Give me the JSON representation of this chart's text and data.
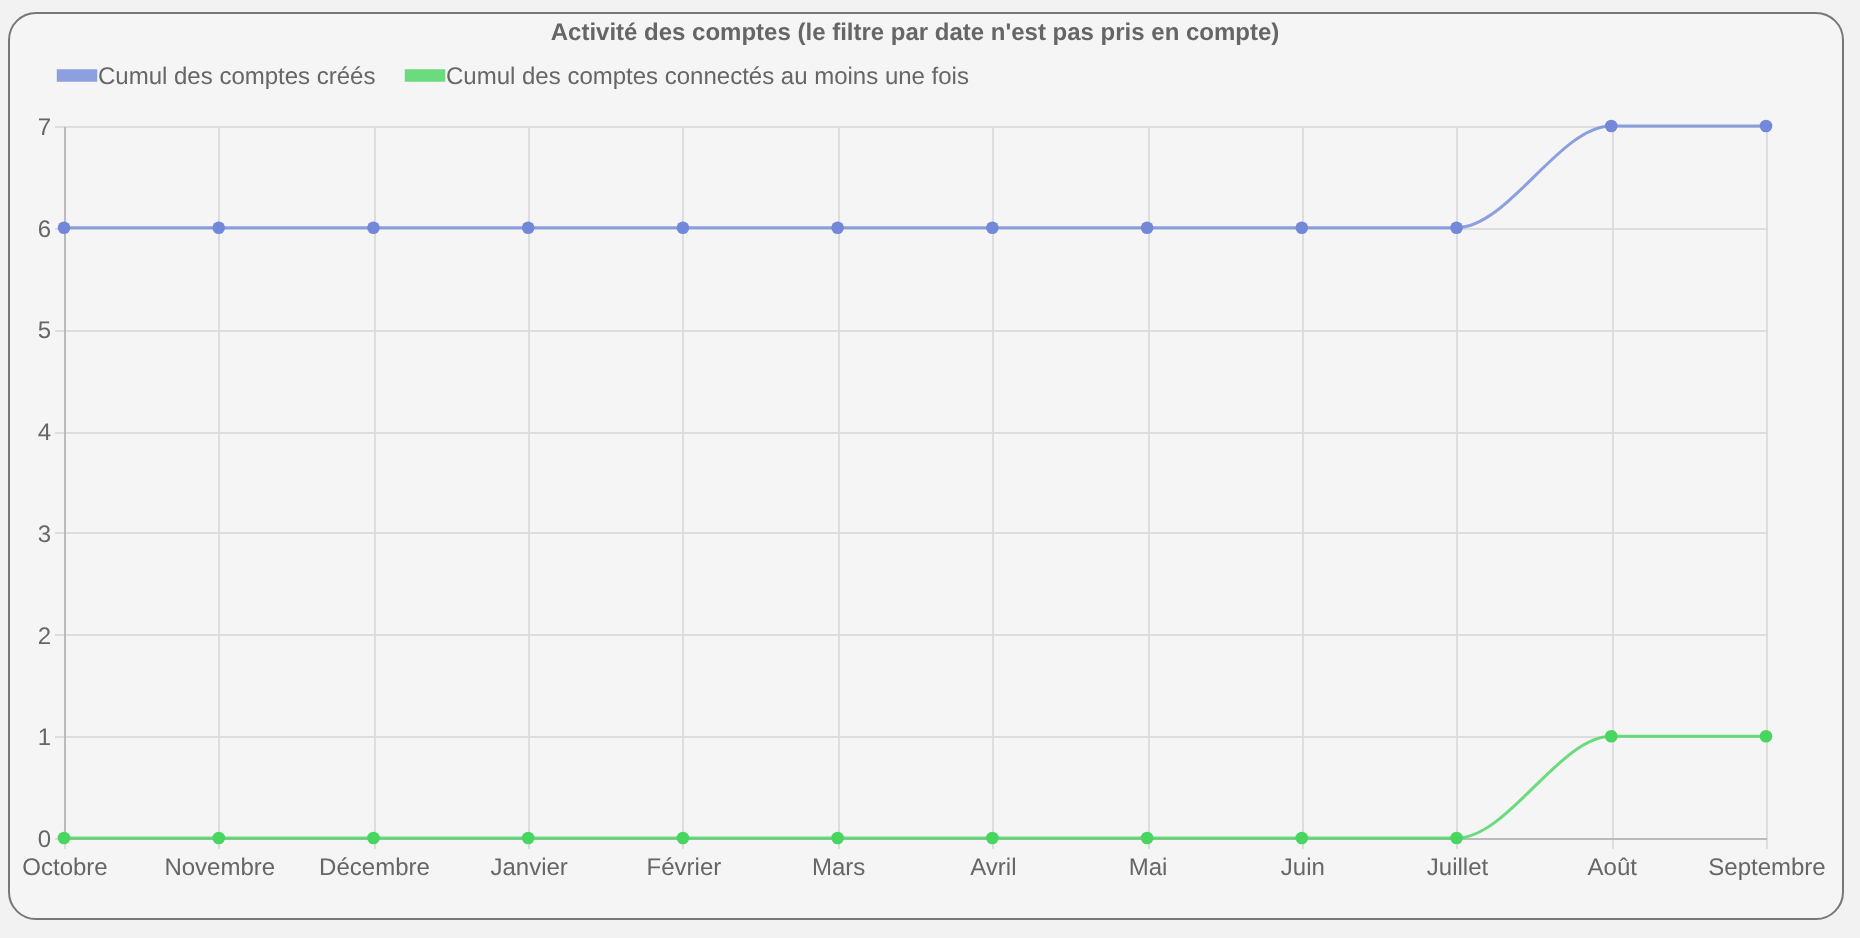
{
  "chart_data": {
    "type": "line",
    "title": "Activité des comptes (le filtre par date n'est pas pris en compte)",
    "categories": [
      "Octobre",
      "Novembre",
      "Décembre",
      "Janvier",
      "Février",
      "Mars",
      "Avril",
      "Mai",
      "Juin",
      "Juillet",
      "Août",
      "Septembre"
    ],
    "series": [
      {
        "name": "Cumul des comptes créés",
        "color": "#7289da",
        "values": [
          6,
          6,
          6,
          6,
          6,
          6,
          6,
          6,
          6,
          6,
          7,
          7
        ]
      },
      {
        "name": "Cumul des comptes connectés au moins une fois",
        "color": "#47d65f",
        "values": [
          0,
          0,
          0,
          0,
          0,
          0,
          0,
          0,
          0,
          0,
          1,
          1
        ]
      }
    ],
    "ylim": [
      0,
      7
    ],
    "yticks": [
      0,
      1,
      2,
      3,
      4,
      5,
      6,
      7
    ],
    "grid": true,
    "legend": "top",
    "marker": "circle",
    "line_style": "solid"
  }
}
